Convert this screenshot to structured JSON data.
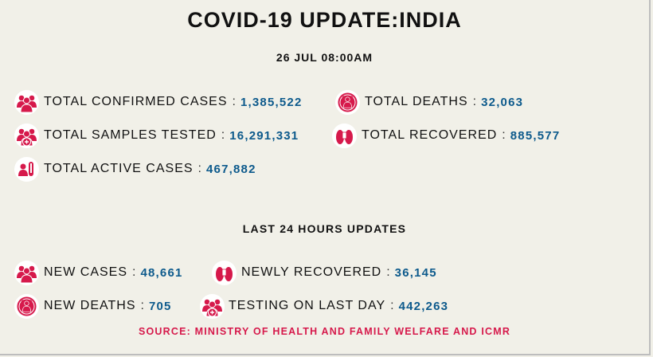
{
  "title": "COVID-19 UPDATE:INDIA",
  "date": "26 JUL 08:00AM",
  "colors": {
    "icon_red": "#d6194b",
    "value_blue": "#0d5a8c",
    "background": "#f1f0e8"
  },
  "totals": [
    {
      "label": "TOTAL CONFIRMED CASES",
      "value": "1,385,522",
      "icon": "people-group-icon"
    },
    {
      "label": "TOTAL DEATHS",
      "value": "32,063",
      "icon": "deaths-icon"
    },
    {
      "label": "TOTAL SAMPLES TESTED",
      "value": "16,291,331",
      "icon": "people-medical-icon"
    },
    {
      "label": "TOTAL RECOVERED",
      "value": "885,577",
      "icon": "feet-tag-icon"
    },
    {
      "label": "TOTAL ACTIVE CASES",
      "value": "467,882",
      "icon": "person-test-tube-icon"
    }
  ],
  "last24_heading": "LAST 24 HOURS UPDATES",
  "last24": [
    {
      "label": "NEW CASES",
      "value": "48,661",
      "icon": "people-group-icon"
    },
    {
      "label": "NEWLY RECOVERED",
      "value": "36,145",
      "icon": "feet-tag-icon"
    },
    {
      "label": "NEW DEATHS",
      "value": "705",
      "icon": "deaths-icon"
    },
    {
      "label": "TESTING ON LAST DAY",
      "value": "442,263",
      "icon": "people-medical-icon"
    }
  ],
  "separator": ":",
  "source": "SOURCE: MINISTRY OF HEALTH AND FAMILY WELFARE AND ICMR"
}
